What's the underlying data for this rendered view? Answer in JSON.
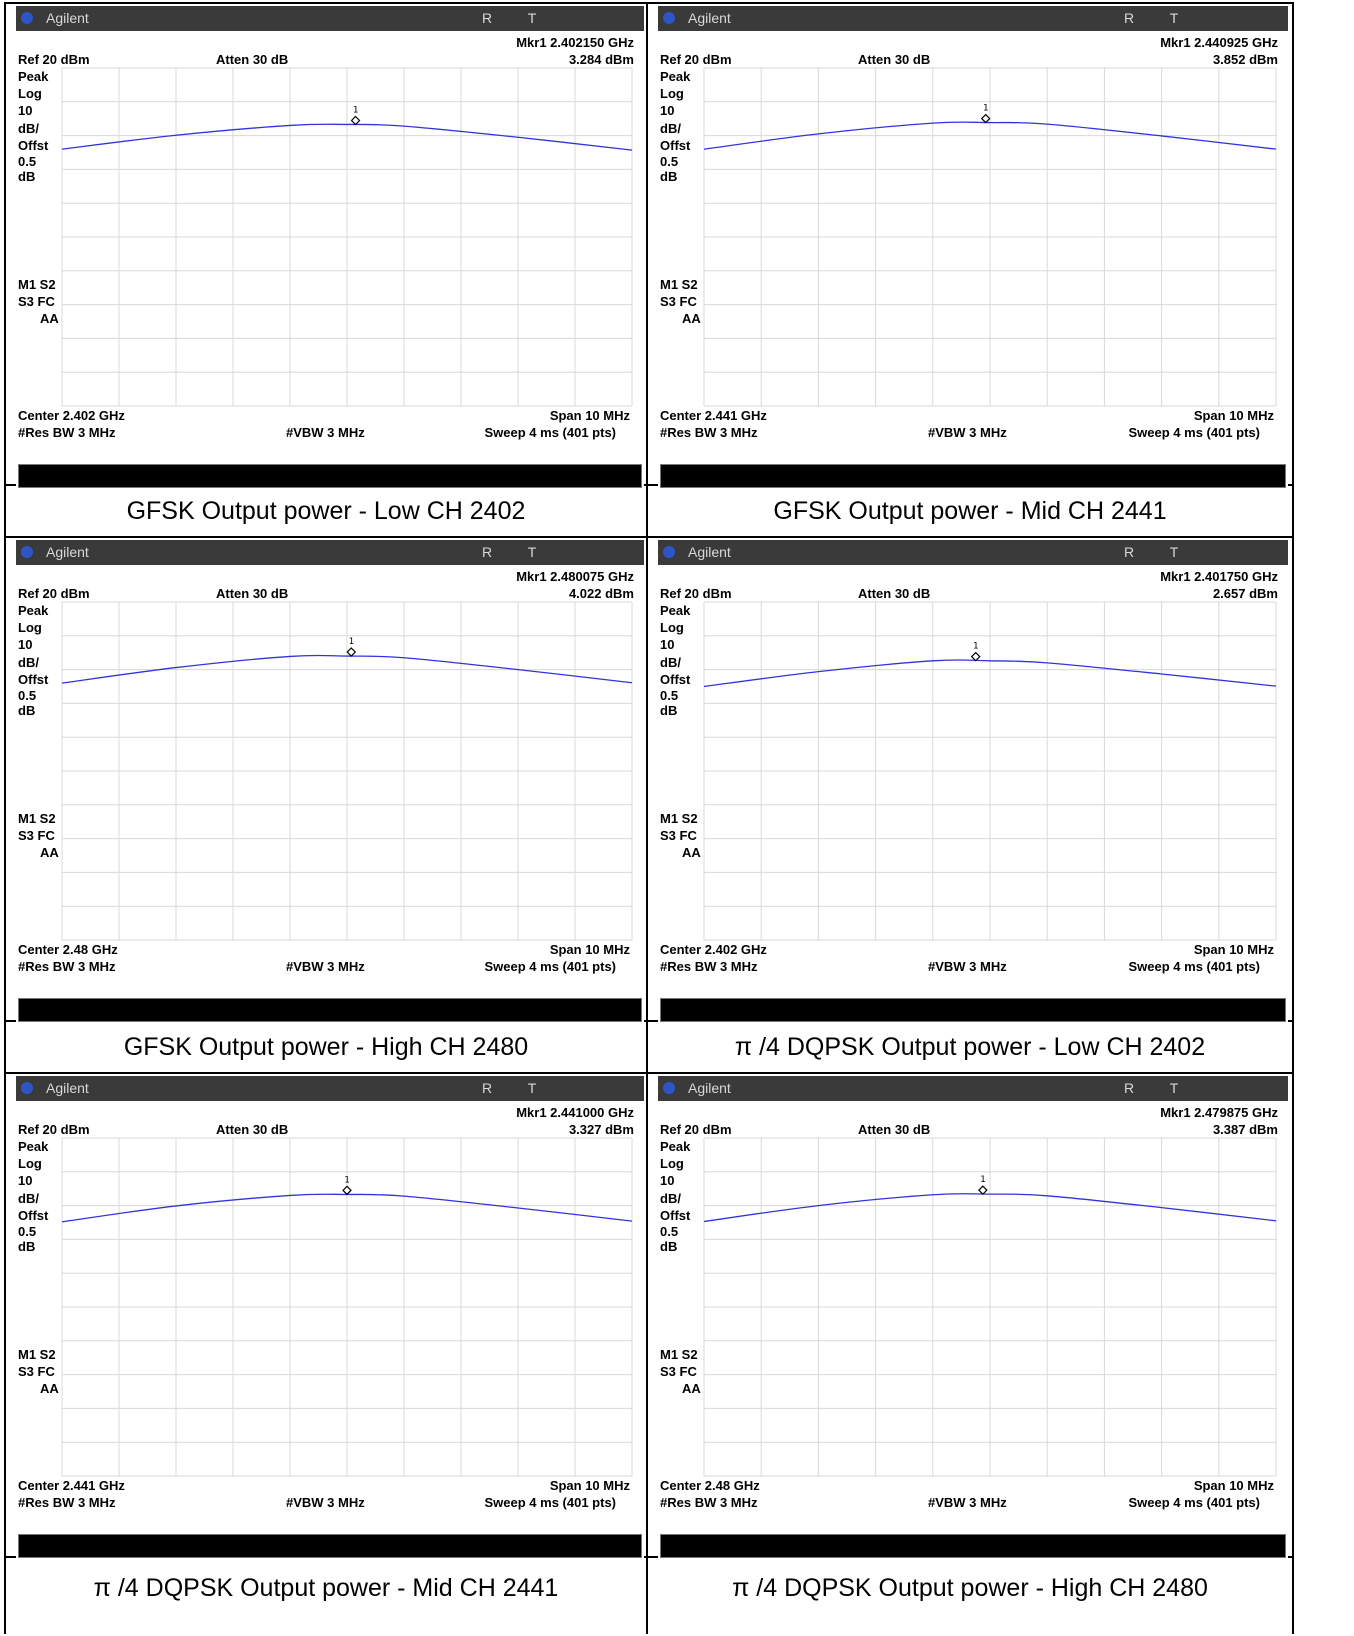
{
  "screens": [
    {
      "caption": "GFSK Output power - Low CH 2402",
      "brand": "Agilent",
      "rt": "R T",
      "ref": "Ref 20 dBm",
      "atten": "Atten 30 dB",
      "marker_freq": "Mkr1  2.402150 GHz",
      "marker_level": "3.284 dBm",
      "left_labels": [
        "Peak",
        "Log",
        "10",
        "dB/",
        "Offst",
        "0.5",
        "dB"
      ],
      "m1s2": "M1  S2",
      "s3fc": "S3  FC",
      "aa": "AA",
      "center": "Center 2.402 GHz",
      "span": "Span 10 MHz",
      "res_bw": "#Res BW 3 MHz",
      "vbw": "#VBW 3 MHz",
      "sweep": "Sweep 4 ms (401 pts)"
    },
    {
      "caption": "GFSK Output power -  Mid CH 2441",
      "brand": "Agilent",
      "rt": "R T",
      "ref": "Ref 20 dBm",
      "atten": "Atten 30 dB",
      "marker_freq": "Mkr1  2.440925 GHz",
      "marker_level": "3.852 dBm",
      "left_labels": [
        "Peak",
        "Log",
        "10",
        "dB/",
        "Offst",
        "0.5",
        "dB"
      ],
      "m1s2": "M1  S2",
      "s3fc": "S3  FC",
      "aa": "AA",
      "center": "Center 2.441 GHz",
      "span": "Span 10 MHz",
      "res_bw": "#Res BW 3 MHz",
      "vbw": "#VBW 3 MHz",
      "sweep": "Sweep 4 ms (401 pts)"
    },
    {
      "caption": "GFSK Output power -  High CH 2480",
      "brand": "Agilent",
      "rt": "R T",
      "ref": "Ref 20 dBm",
      "atten": "Atten 30 dB",
      "marker_freq": "Mkr1  2.480075 GHz",
      "marker_level": "4.022 dBm",
      "left_labels": [
        "Peak",
        "Log",
        "10",
        "dB/",
        "Offst",
        "0.5",
        "dB"
      ],
      "m1s2": "M1  S2",
      "s3fc": "S3  FC",
      "aa": "AA",
      "center": "Center 2.48 GHz",
      "span": "Span 10 MHz",
      "res_bw": "#Res BW 3 MHz",
      "vbw": "#VBW 3 MHz",
      "sweep": "Sweep 4 ms (401 pts)"
    },
    {
      "caption": "π /4 DQPSK Output power - Low CH 2402",
      "brand": "Agilent",
      "rt": "R T",
      "ref": "Ref 20 dBm",
      "atten": "Atten 30 dB",
      "marker_freq": "Mkr1  2.401750 GHz",
      "marker_level": "2.657 dBm",
      "left_labels": [
        "Peak",
        "Log",
        "10",
        "dB/",
        "Offst",
        "0.5",
        "dB"
      ],
      "m1s2": "M1  S2",
      "s3fc": "S3  FC",
      "aa": "AA",
      "center": "Center 2.402 GHz",
      "span": "Span 10 MHz",
      "res_bw": "#Res BW 3 MHz",
      "vbw": "#VBW 3 MHz",
      "sweep": "Sweep 4 ms (401 pts)"
    },
    {
      "caption": "π /4 DQPSK Output power -  Mid CH 2441",
      "brand": "Agilent",
      "rt": "R T",
      "ref": "Ref 20 dBm",
      "atten": "Atten 30 dB",
      "marker_freq": "Mkr1  2.441000 GHz",
      "marker_level": "3.327 dBm",
      "left_labels": [
        "Peak",
        "Log",
        "10",
        "dB/",
        "Offst",
        "0.5",
        "dB"
      ],
      "m1s2": "M1  S2",
      "s3fc": "S3  FC",
      "aa": "AA",
      "center": "Center 2.441 GHz",
      "span": "Span 10 MHz",
      "res_bw": "#Res BW 3 MHz",
      "vbw": "#VBW 3 MHz",
      "sweep": "Sweep 4 ms (401 pts)"
    },
    {
      "caption": "π /4 DQPSK Output power -  High CH 2480",
      "brand": "Agilent",
      "rt": "R T",
      "ref": "Ref 20 dBm",
      "atten": "Atten 30 dB",
      "marker_freq": "Mkr1  2.479875 GHz",
      "marker_level": "3.387 dBm",
      "left_labels": [
        "Peak",
        "Log",
        "10",
        "dB/",
        "Offst",
        "0.5",
        "dB"
      ],
      "m1s2": "M1  S2",
      "s3fc": "S3  FC",
      "aa": "AA",
      "center": "Center 2.48 GHz",
      "span": "Span 10 MHz",
      "res_bw": "#Res BW 3 MHz",
      "vbw": "#VBW 3 MHz",
      "sweep": "Sweep 4 ms (401 pts)"
    }
  ],
  "colors": {
    "trace": "#3333dd",
    "grid": "#d8d8d8",
    "titlebar": "#3a3a3a"
  },
  "chart_data": [
    {
      "type": "line",
      "ylabel": "dBm",
      "xlim_ghz": [
        2.397,
        2.407
      ],
      "ylim": [
        -80,
        20
      ],
      "grid": true,
      "series": [
        {
          "x": [
            2.397,
            2.399,
            2.401,
            2.402,
            2.403,
            2.405,
            2.407
          ],
          "y": [
            -4.0,
            0.1,
            3.0,
            3.3,
            2.8,
            -0.5,
            -4.3
          ]
        }
      ],
      "marker": {
        "x": 2.40215,
        "y": 3.284
      }
    },
    {
      "type": "line",
      "ylabel": "dBm",
      "xlim_ghz": [
        2.436,
        2.446
      ],
      "ylim": [
        -80,
        20
      ],
      "grid": true,
      "series": [
        {
          "x": [
            2.436,
            2.438,
            2.44,
            2.441,
            2.442,
            2.444,
            2.446
          ],
          "y": [
            -4.0,
            0.5,
            3.7,
            3.85,
            3.4,
            -0.1,
            -4.0
          ]
        }
      ],
      "marker": {
        "x": 2.440925,
        "y": 3.852
      }
    },
    {
      "type": "line",
      "ylabel": "dBm",
      "xlim_ghz": [
        2.475,
        2.485
      ],
      "ylim": [
        -80,
        20
      ],
      "grid": true,
      "series": [
        {
          "x": [
            2.475,
            2.477,
            2.479,
            2.48,
            2.481,
            2.483,
            2.485
          ],
          "y": [
            -4.0,
            0.6,
            3.9,
            4.0,
            3.5,
            0.0,
            -3.9
          ]
        }
      ],
      "marker": {
        "x": 2.480075,
        "y": 4.022
      }
    },
    {
      "type": "line",
      "ylabel": "dBm",
      "xlim_ghz": [
        2.397,
        2.407
      ],
      "ylim": [
        -80,
        20
      ],
      "grid": true,
      "series": [
        {
          "x": [
            2.397,
            2.399,
            2.401,
            2.402,
            2.403,
            2.405,
            2.407
          ],
          "y": [
            -5.0,
            -0.6,
            2.6,
            2.6,
            2.0,
            -1.3,
            -4.9
          ]
        }
      ],
      "marker": {
        "x": 2.40175,
        "y": 2.657
      }
    },
    {
      "type": "line",
      "ylabel": "dBm",
      "xlim_ghz": [
        2.436,
        2.446
      ],
      "ylim": [
        -80,
        20
      ],
      "grid": true,
      "series": [
        {
          "x": [
            2.436,
            2.438,
            2.44,
            2.441,
            2.442,
            2.444,
            2.446
          ],
          "y": [
            -4.8,
            -0.1,
            3.0,
            3.3,
            2.8,
            -0.7,
            -4.6
          ]
        }
      ],
      "marker": {
        "x": 2.441,
        "y": 3.327
      }
    },
    {
      "type": "line",
      "ylabel": "dBm",
      "xlim_ghz": [
        2.475,
        2.485
      ],
      "ylim": [
        -80,
        20
      ],
      "grid": true,
      "series": [
        {
          "x": [
            2.475,
            2.477,
            2.479,
            2.48,
            2.481,
            2.483,
            2.485
          ],
          "y": [
            -4.7,
            0.0,
            3.2,
            3.4,
            2.9,
            -0.6,
            -4.5
          ]
        }
      ],
      "marker": {
        "x": 2.479875,
        "y": 3.387
      }
    }
  ]
}
